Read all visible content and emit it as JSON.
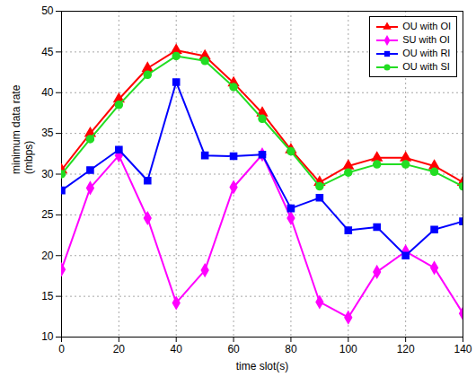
{
  "chart_data": {
    "type": "line",
    "x_label": "time slot(s)",
    "y_label": "minimum data rate\n(mbps)",
    "x": [
      0,
      10,
      20,
      30,
      40,
      50,
      60,
      70,
      80,
      90,
      100,
      110,
      120,
      130,
      140
    ],
    "series": [
      {
        "name": "OU with OI",
        "color": "#ff0000",
        "marker": "triangle",
        "values": [
          30.5,
          35,
          39.2,
          43,
          45.2,
          44.5,
          41.2,
          37.5,
          33,
          29,
          31,
          32,
          32,
          31,
          29
        ]
      },
      {
        "name": "SU with OI",
        "color": "#ff00ff",
        "marker": "diamond",
        "values": [
          18.3,
          28.3,
          32.3,
          24.6,
          14.2,
          18.2,
          28.4,
          32.4,
          24.6,
          14.3,
          12.4,
          18,
          20.5,
          18.5,
          12.9
        ]
      },
      {
        "name": "OU with RI",
        "color": "#0000ff",
        "marker": "square",
        "values": [
          28,
          30.5,
          33,
          29.2,
          41.3,
          32.3,
          32.2,
          32.4,
          25.8,
          27.1,
          23.1,
          23.5,
          20,
          23.2,
          24.2
        ]
      },
      {
        "name": "OU with SI",
        "color": "#22dd22",
        "marker": "circle",
        "values": [
          30,
          34.3,
          38.5,
          42.2,
          44.5,
          43.9,
          40.7,
          36.8,
          32.8,
          28.5,
          30.2,
          31.2,
          31.2,
          30.3,
          28.5
        ]
      }
    ],
    "xlim": [
      0,
      140
    ],
    "xticks": [
      0,
      20,
      40,
      60,
      80,
      100,
      120,
      140
    ],
    "ylim": [
      10,
      50
    ],
    "yticks": [
      10,
      15,
      20,
      25,
      30,
      35,
      40,
      45,
      50
    ],
    "grid": true,
    "legend": "top-right"
  }
}
